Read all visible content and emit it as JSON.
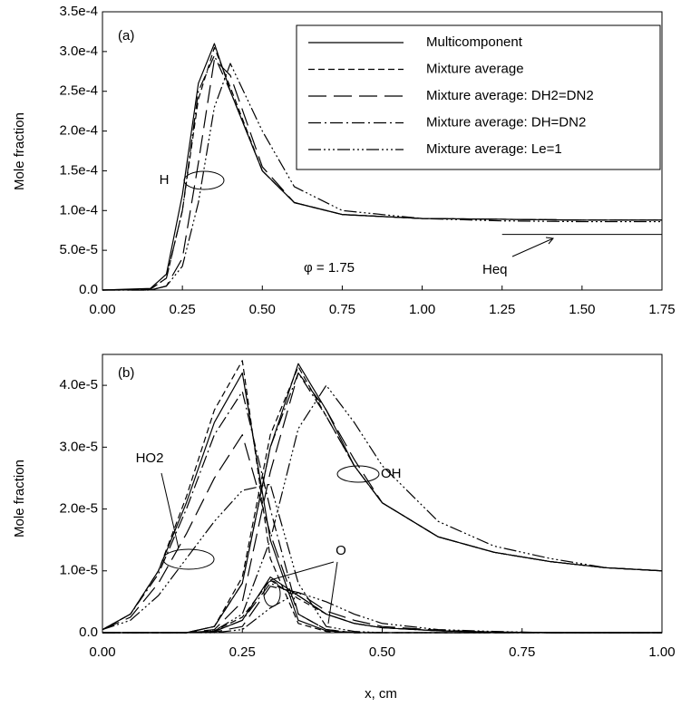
{
  "chart_data": [
    {
      "type": "line",
      "panel_label": "(a)",
      "ylabel": "Mole fraction",
      "x": [
        0,
        0.15,
        0.2,
        0.25,
        0.3,
        0.35,
        0.4,
        0.5,
        0.6,
        0.75,
        1.0,
        1.25,
        1.5,
        1.75
      ],
      "xlim": [
        0,
        1.75
      ],
      "xticks": [
        {
          "value": 0,
          "label": "0.00"
        },
        {
          "value": 0.25,
          "label": "0.25"
        },
        {
          "value": 0.5,
          "label": "0.50"
        },
        {
          "value": 0.75,
          "label": "0.75"
        },
        {
          "value": 1.0,
          "label": "1.00"
        },
        {
          "value": 1.25,
          "label": "1.25"
        },
        {
          "value": 1.5,
          "label": "1.50"
        },
        {
          "value": 1.75,
          "label": "1.75"
        }
      ],
      "ylim": [
        0,
        0.00035
      ],
      "yticks": [
        {
          "value": 0,
          "label": "0.0"
        },
        {
          "value": 5e-05,
          "label": "5.0e-5"
        },
        {
          "value": 0.0001,
          "label": "1.0e-4"
        },
        {
          "value": 0.00015,
          "label": "1.5e-4"
        },
        {
          "value": 0.0002,
          "label": "2.0e-4"
        },
        {
          "value": 0.00025,
          "label": "2.5e-4"
        },
        {
          "value": 0.0003,
          "label": "3.0e-4"
        },
        {
          "value": 0.00035,
          "label": "3.5e-4"
        }
      ],
      "series": [
        {
          "name": "Multicomponent",
          "color": "#000000",
          "dash": "none",
          "values": [
            0,
            2e-06,
            2e-05,
            0.00012,
            0.00026,
            0.00031,
            0.00025,
            0.00015,
            0.00011,
            9.5e-05,
            9e-05,
            8.9e-05,
            8.8e-05,
            8.8e-05
          ]
        },
        {
          "name": "Mixture average",
          "color": "#000000",
          "dash": "7 4",
          "values": [
            0,
            1e-06,
            1.5e-05,
            0.0001,
            0.00024,
            0.000305,
            0.000255,
            0.00015,
            0.00011,
            9.5e-05,
            9e-05,
            8.9e-05,
            8.8e-05,
            8.8e-05
          ]
        },
        {
          "name": "Mixture average: DH2=DN2",
          "color": "#000000",
          "dash": "20 8",
          "values": [
            0,
            0,
            5e-06,
            4e-05,
            0.00016,
            0.00029,
            0.00027,
            0.000155,
            0.00011,
            9.5e-05,
            9e-05,
            8.9e-05,
            8.8e-05,
            8.8e-05
          ]
        },
        {
          "name": "Mixture average: DH=DN2",
          "color": "#000000",
          "dash": "14 4 2 4",
          "values": [
            0,
            1e-06,
            1.5e-05,
            0.0001,
            0.00025,
            0.000295,
            0.00025,
            0.00015,
            0.00011,
            9.5e-05,
            9e-05,
            8.9e-05,
            8.8e-05,
            8.8e-05
          ]
        },
        {
          "name": "Mixture average: Le=1",
          "color": "#000000",
          "dash": "14 3 2 3 2 3 2 3",
          "values": [
            0,
            0,
            5e-06,
            3e-05,
            0.00011,
            0.00023,
            0.000285,
            0.0002,
            0.00013,
            0.0001,
            9e-05,
            8.7e-05,
            8.6e-05,
            8.6e-05
          ]
        }
      ],
      "species_label": "H",
      "condition": "φ = 1.75",
      "reference": {
        "label": "Heq",
        "value": 7e-05,
        "x": [
          1.25,
          1.75
        ]
      }
    },
    {
      "type": "line",
      "panel_label": "(b)",
      "ylabel": "Mole fraction",
      "xlabel": "x, cm",
      "x": [
        0,
        0.05,
        0.1,
        0.15,
        0.2,
        0.25,
        0.3,
        0.35,
        0.4,
        0.45,
        0.5,
        0.6,
        0.7,
        0.8,
        0.9,
        1.0
      ],
      "xlim": [
        0,
        1.0
      ],
      "xticks": [
        {
          "value": 0,
          "label": "0.00"
        },
        {
          "value": 0.25,
          "label": "0.25"
        },
        {
          "value": 0.5,
          "label": "0.50"
        },
        {
          "value": 0.75,
          "label": "0.75"
        },
        {
          "value": 1.0,
          "label": "1.00"
        }
      ],
      "ylim": [
        0,
        4.5e-05
      ],
      "yticks": [
        {
          "value": 0,
          "label": "0.0"
        },
        {
          "value": 1e-05,
          "label": "1.0e-5"
        },
        {
          "value": 2e-05,
          "label": "2.0e-5"
        },
        {
          "value": 3e-05,
          "label": "3.0e-5"
        },
        {
          "value": 4e-05,
          "label": "4.0e-5"
        }
      ],
      "groups": [
        {
          "label": "HO2",
          "series": [
            {
              "color": "#000000",
              "dash": "none",
              "values": [
                5e-07,
                3e-06,
                1e-05,
                2.1e-05,
                3.4e-05,
                4.2e-05,
                1.5e-05,
                2e-06,
                3e-07,
                0,
                0,
                0,
                0,
                0,
                0,
                0
              ]
            },
            {
              "color": "#000000",
              "dash": "7 4",
              "values": [
                5e-07,
                3e-06,
                1e-05,
                2.2e-05,
                3.6e-05,
                4.4e-05,
                1.2e-05,
                1.5e-06,
                2e-07,
                0,
                0,
                0,
                0,
                0,
                0,
                0
              ]
            },
            {
              "color": "#000000",
              "dash": "20 8",
              "values": [
                5e-07,
                2.5e-06,
                8e-06,
                1.6e-05,
                2.5e-05,
                3.2e-05,
                1.6e-05,
                3e-06,
                5e-07,
                0,
                0,
                0,
                0,
                0,
                0,
                0
              ]
            },
            {
              "color": "#000000",
              "dash": "14 4 2 4",
              "values": [
                5e-07,
                3e-06,
                9.5e-06,
                2e-05,
                3.2e-05,
                3.9e-05,
                2e-05,
                3e-06,
                5e-07,
                0,
                0,
                0,
                0,
                0,
                0,
                0
              ]
            },
            {
              "color": "#000000",
              "dash": "14 3 2 3 2 3 2 3",
              "values": [
                5e-07,
                2e-06,
                6e-06,
                1.2e-05,
                1.8e-05,
                2.3e-05,
                2.4e-05,
                8e-06,
                1e-06,
                2e-07,
                0,
                0,
                0,
                0,
                0,
                0
              ]
            }
          ]
        },
        {
          "label": "OH",
          "series": [
            {
              "color": "#000000",
              "dash": "none",
              "values": [
                0,
                0,
                0,
                0,
                1e-06,
                8e-06,
                3e-05,
                4.35e-05,
                3.6e-05,
                2.7e-05,
                2.1e-05,
                1.55e-05,
                1.3e-05,
                1.15e-05,
                1.05e-05,
                1e-05
              ]
            },
            {
              "color": "#000000",
              "dash": "7 4",
              "values": [
                0,
                0,
                0,
                0,
                1e-06,
                9e-06,
                3.2e-05,
                4.3e-05,
                3.5e-05,
                2.7e-05,
                2.1e-05,
                1.55e-05,
                1.3e-05,
                1.15e-05,
                1.05e-05,
                1e-05
              ]
            },
            {
              "color": "#000000",
              "dash": "20 8",
              "values": [
                0,
                0,
                0,
                0,
                5e-07,
                5e-06,
                2.6e-05,
                4.2e-05,
                3.6e-05,
                2.8e-05,
                2.1e-05,
                1.55e-05,
                1.3e-05,
                1.15e-05,
                1.05e-05,
                1e-05
              ]
            },
            {
              "color": "#000000",
              "dash": "14 4 2 4",
              "values": [
                0,
                0,
                0,
                0,
                1e-06,
                8e-06,
                3e-05,
                4.2e-05,
                3.5e-05,
                2.7e-05,
                2.1e-05,
                1.55e-05,
                1.3e-05,
                1.15e-05,
                1.05e-05,
                1e-05
              ]
            },
            {
              "color": "#000000",
              "dash": "14 3 2 3 2 3 2 3",
              "values": [
                0,
                0,
                0,
                0,
                3e-07,
                3e-06,
                1.5e-05,
                3.3e-05,
                4e-05,
                3.4e-05,
                2.7e-05,
                1.8e-05,
                1.4e-05,
                1.2e-05,
                1.05e-05,
                1e-05
              ]
            }
          ]
        },
        {
          "label": "O",
          "series": [
            {
              "color": "#000000",
              "dash": "none",
              "values": [
                0,
                0,
                0,
                0,
                2e-07,
                2e-06,
                9e-06,
                6e-06,
                3e-06,
                1.5e-06,
                8e-07,
                3e-07,
                1e-07,
                0,
                0,
                0
              ]
            },
            {
              "color": "#000000",
              "dash": "7 4",
              "values": [
                0,
                0,
                0,
                0,
                3e-07,
                2.5e-06,
                8.5e-06,
                5.5e-06,
                3e-06,
                1.5e-06,
                8e-07,
                3e-07,
                1e-07,
                0,
                0,
                0
              ]
            },
            {
              "color": "#000000",
              "dash": "20 8",
              "values": [
                0,
                0,
                0,
                0,
                1e-07,
                1e-06,
                7.5e-06,
                6.5e-06,
                3.5e-06,
                2e-06,
                1e-06,
                4e-07,
                1e-07,
                0,
                0,
                0
              ]
            },
            {
              "color": "#000000",
              "dash": "14 4 2 4",
              "values": [
                0,
                0,
                0,
                0,
                2e-07,
                2e-06,
                8e-06,
                6e-06,
                3e-06,
                1.5e-06,
                8e-07,
                3e-07,
                1e-07,
                0,
                0,
                0
              ]
            },
            {
              "color": "#000000",
              "dash": "14 3 2 3 2 3 2 3",
              "values": [
                0,
                0,
                0,
                0,
                0,
                5e-07,
                4e-06,
                6.5e-06,
                5e-06,
                3e-06,
                1.5e-06,
                5e-07,
                2e-07,
                0,
                0,
                0
              ]
            }
          ]
        }
      ]
    }
  ]
}
